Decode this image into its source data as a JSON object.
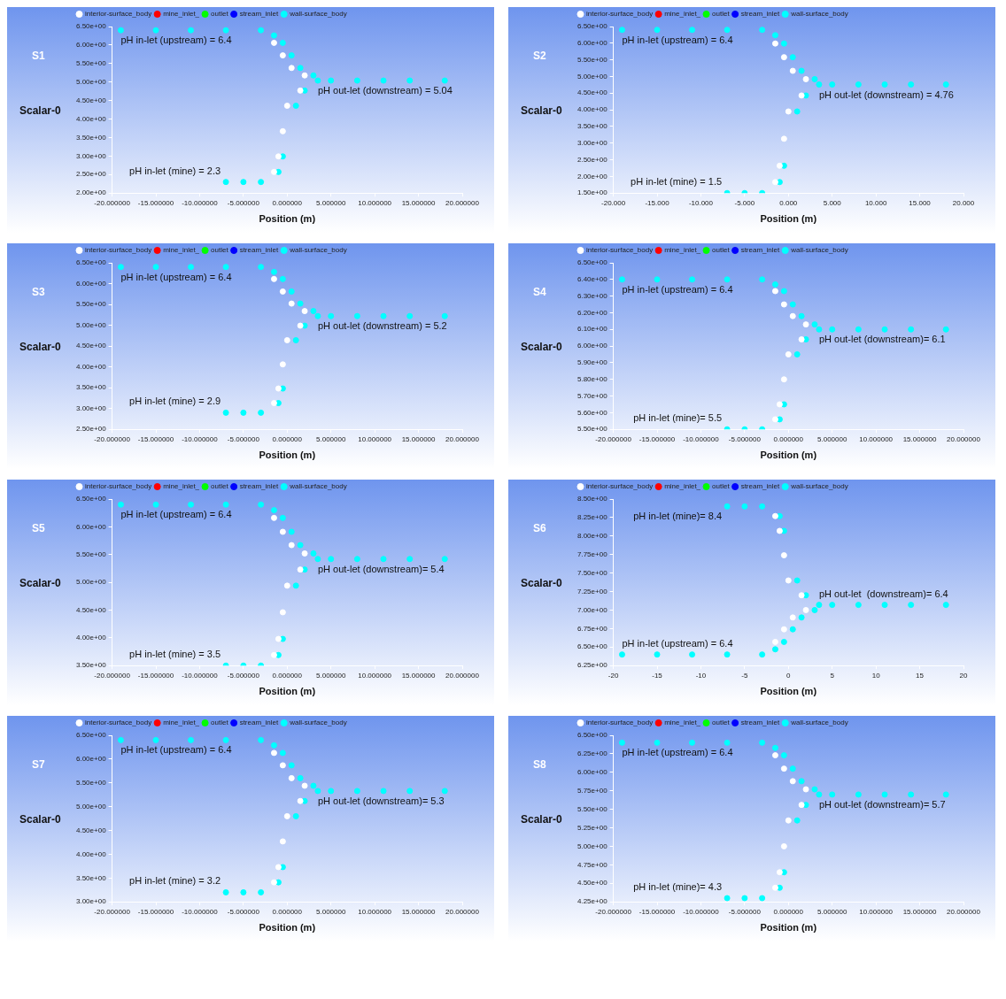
{
  "chart_data": [
    {
      "type": "scatter",
      "title": "S1",
      "xlabel": "Position (m)",
      "ylabel": "Scalar-0",
      "marker": "circle",
      "legend": "top left",
      "grid": false,
      "xlim": [
        -20,
        20
      ],
      "xticks": [
        {
          "value": -20,
          "label": "-20.000000"
        },
        {
          "value": -15,
          "label": "-15.000000"
        },
        {
          "value": -10,
          "label": "-10.000000"
        },
        {
          "value": -5,
          "label": "-5.000000"
        },
        {
          "value": 0,
          "label": "0.000000"
        },
        {
          "value": 5,
          "label": "5.000000"
        },
        {
          "value": 10,
          "label": "10.000000"
        },
        {
          "value": 15,
          "label": "15.000000"
        },
        {
          "value": 20,
          "label": "20.000000"
        }
      ],
      "ylim": [
        2,
        6.5
      ],
      "yticks": [
        {
          "value": 2,
          "label": "2.00e+00"
        },
        {
          "value": 2.5,
          "label": "2.50e+00"
        },
        {
          "value": 3,
          "label": "3.00e+00"
        },
        {
          "value": 3.5,
          "label": "3.50e+00"
        },
        {
          "value": 4,
          "label": "4.00e+00"
        },
        {
          "value": 4.5,
          "label": "4.50e+00"
        },
        {
          "value": 5,
          "label": "5.00e+00"
        },
        {
          "value": 5.5,
          "label": "5.50e+00"
        },
        {
          "value": 6,
          "label": "6.00e+00"
        },
        {
          "value": 6.5,
          "label": "6.50e+00"
        }
      ],
      "annotations": [
        {
          "text": "pH in-let (upstream) = 6.4",
          "x": -19,
          "y": 6.4
        },
        {
          "text": "pH out-let (downstream) = 5.04",
          "x": 3.5,
          "y": 5.04
        },
        {
          "text": "pH in-let (mine) = 2.3",
          "x": -7,
          "y": 2.3
        }
      ],
      "series": [
        {
          "name": "interior-surface_body",
          "color": "#ffffff",
          "x": [
            -1.5,
            -0.5,
            0.5,
            2,
            -1.5,
            -1,
            -0.5,
            0,
            1.5
          ],
          "values": [
            6.06,
            5.72,
            5.38,
            5.18,
            2.57,
            2.99,
            3.67,
            4.36,
            4.77
          ]
        },
        {
          "name": "mine_inlet_",
          "color": "#ff0000"
        },
        {
          "name": "outlet",
          "color": "#00ff00"
        },
        {
          "name": "stream_inlet",
          "color": "#0000ff"
        },
        {
          "name": "wall-surface_body",
          "color": "#00ffff",
          "x": [
            -19,
            -15,
            -11,
            -7,
            -3,
            -1.5,
            -0.5,
            0.5,
            1.5,
            3,
            5,
            8,
            11,
            14,
            18,
            -7,
            -5,
            -3,
            -1,
            -0.5,
            1,
            2,
            3.5
          ],
          "values": [
            6.4,
            6.4,
            6.4,
            6.4,
            6.4,
            6.26,
            6.06,
            5.72,
            5.38,
            5.18,
            5.04,
            5.04,
            5.04,
            5.04,
            5.04,
            2.3,
            2.3,
            2.3,
            2.57,
            2.99,
            4.36,
            4.77,
            5.04
          ]
        }
      ]
    },
    {
      "type": "scatter",
      "title": "S2",
      "xlabel": "Position (m)",
      "ylabel": "Scalar-0",
      "marker": "circle",
      "legend": "top left",
      "grid": false,
      "xlim": [
        -20,
        20
      ],
      "xticks": [
        {
          "value": -20,
          "label": "-20.000"
        },
        {
          "value": -15,
          "label": "-15.000"
        },
        {
          "value": -10,
          "label": "-10.000"
        },
        {
          "value": -5,
          "label": "-5.000"
        },
        {
          "value": 0,
          "label": "0.000"
        },
        {
          "value": 5,
          "label": "5.000"
        },
        {
          "value": 10,
          "label": "10.000"
        },
        {
          "value": 15,
          "label": "15.000"
        },
        {
          "value": 20,
          "label": "20.000"
        }
      ],
      "ylim": [
        1.5,
        6.5
      ],
      "yticks": [
        {
          "value": 1.5,
          "label": "1.50e+00"
        },
        {
          "value": 2,
          "label": "2.00e+00"
        },
        {
          "value": 2.5,
          "label": "2.50e+00"
        },
        {
          "value": 3,
          "label": "3.00e+00"
        },
        {
          "value": 3.5,
          "label": "3.50e+00"
        },
        {
          "value": 4,
          "label": "4.00e+00"
        },
        {
          "value": 4.5,
          "label": "4.50e+00"
        },
        {
          "value": 5,
          "label": "5.00e+00"
        },
        {
          "value": 5.5,
          "label": "5.50e+00"
        },
        {
          "value": 6,
          "label": "6.00e+00"
        },
        {
          "value": 6.5,
          "label": "6.50e+00"
        }
      ],
      "annotations": [
        {
          "text": "pH in-let (upstream) = 6.4",
          "x": -19,
          "y": 6.4
        },
        {
          "text": "pH out-let (downstream) = 4.76",
          "x": 3.5,
          "y": 4.76
        },
        {
          "text": "pH in-let (mine) = 1.5",
          "x": -7,
          "y": 1.5
        }
      ],
      "series": [
        {
          "name": "interior-surface_body",
          "color": "#ffffff",
          "x": [
            -1.5,
            -0.5,
            0.5,
            2,
            -1.5,
            -1,
            -0.5,
            0,
            1.5
          ],
          "values": [
            5.99,
            5.58,
            5.17,
            4.92,
            1.83,
            2.32,
            3.13,
            3.95,
            4.43
          ]
        },
        {
          "name": "mine_inlet_",
          "color": "#ff0000"
        },
        {
          "name": "outlet",
          "color": "#00ff00"
        },
        {
          "name": "stream_inlet",
          "color": "#0000ff"
        },
        {
          "name": "wall-surface_body",
          "color": "#00ffff",
          "x": [
            -19,
            -15,
            -11,
            -7,
            -3,
            -1.5,
            -0.5,
            0.5,
            1.5,
            3,
            5,
            8,
            11,
            14,
            18,
            -7,
            -5,
            -3,
            -1,
            -0.5,
            1,
            2,
            3.5
          ],
          "values": [
            6.4,
            6.4,
            6.4,
            6.4,
            6.4,
            6.24,
            5.99,
            5.58,
            5.17,
            4.92,
            4.76,
            4.76,
            4.76,
            4.76,
            4.76,
            1.5,
            1.5,
            1.5,
            1.83,
            2.32,
            3.95,
            4.43,
            4.76
          ]
        }
      ]
    },
    {
      "type": "scatter",
      "title": "S3",
      "xlabel": "Position (m)",
      "ylabel": "Scalar-0",
      "marker": "circle",
      "legend": "top left",
      "grid": false,
      "xlim": [
        -20,
        20
      ],
      "xticks": [
        {
          "value": -20,
          "label": "-20.000000"
        },
        {
          "value": -15,
          "label": "-15.000000"
        },
        {
          "value": -10,
          "label": "-10.000000"
        },
        {
          "value": -5,
          "label": "-5.000000"
        },
        {
          "value": 0,
          "label": "0.000000"
        },
        {
          "value": 5,
          "label": "5.000000"
        },
        {
          "value": 10,
          "label": "10.000000"
        },
        {
          "value": 15,
          "label": "15.000000"
        },
        {
          "value": 20,
          "label": "20.000000"
        }
      ],
      "ylim": [
        2.5,
        6.5
      ],
      "yticks": [
        {
          "value": 2.5,
          "label": "2.50e+00"
        },
        {
          "value": 3,
          "label": "3.00e+00"
        },
        {
          "value": 3.5,
          "label": "3.50e+00"
        },
        {
          "value": 4,
          "label": "4.00e+00"
        },
        {
          "value": 4.5,
          "label": "4.50e+00"
        },
        {
          "value": 5,
          "label": "5.00e+00"
        },
        {
          "value": 5.5,
          "label": "5.50e+00"
        },
        {
          "value": 6,
          "label": "6.00e+00"
        },
        {
          "value": 6.5,
          "label": "6.50e+00"
        }
      ],
      "annotations": [
        {
          "text": "pH in-let (upstream) = 6.4",
          "x": -19,
          "y": 6.4
        },
        {
          "text": "pH out-let (downstream) = 5.2",
          "x": 3.5,
          "y": 5.22
        },
        {
          "text": "pH in-let (mine) = 2.9",
          "x": -7,
          "y": 2.9
        }
      ],
      "series": [
        {
          "name": "interior-surface_body",
          "color": "#ffffff",
          "x": [
            -1.5,
            -0.5,
            0.5,
            2,
            -1.5,
            -1,
            -0.5,
            0,
            1.5
          ],
          "values": [
            6.11,
            5.81,
            5.52,
            5.34,
            3.13,
            3.48,
            4.06,
            4.64,
            4.99
          ]
        },
        {
          "name": "mine_inlet_",
          "color": "#ff0000"
        },
        {
          "name": "outlet",
          "color": "#00ff00"
        },
        {
          "name": "stream_inlet",
          "color": "#0000ff"
        },
        {
          "name": "wall-surface_body",
          "color": "#00ffff",
          "x": [
            -19,
            -15,
            -11,
            -7,
            -3,
            -1.5,
            -0.5,
            0.5,
            1.5,
            3,
            5,
            8,
            11,
            14,
            18,
            -7,
            -5,
            -3,
            -1,
            -0.5,
            1,
            2,
            3.5
          ],
          "values": [
            6.4,
            6.4,
            6.4,
            6.4,
            6.4,
            6.28,
            6.11,
            5.81,
            5.52,
            5.34,
            5.22,
            5.22,
            5.22,
            5.22,
            5.22,
            2.9,
            2.9,
            2.9,
            3.13,
            3.48,
            4.64,
            4.99,
            5.22
          ]
        }
      ]
    },
    {
      "type": "scatter",
      "title": "S4",
      "xlabel": "Position (m)",
      "ylabel": "Scalar-0",
      "marker": "circle",
      "legend": "top left",
      "grid": false,
      "xlim": [
        -20,
        20
      ],
      "xticks": [
        {
          "value": -20,
          "label": "-20.000000"
        },
        {
          "value": -15,
          "label": "-15.000000"
        },
        {
          "value": -10,
          "label": "-10.000000"
        },
        {
          "value": -5,
          "label": "-5.000000"
        },
        {
          "value": 0,
          "label": "0.000000"
        },
        {
          "value": 5,
          "label": "5.000000"
        },
        {
          "value": 10,
          "label": "10.000000"
        },
        {
          "value": 15,
          "label": "15.000000"
        },
        {
          "value": 20,
          "label": "20.000000"
        }
      ],
      "ylim": [
        5.5,
        6.5
      ],
      "yticks": [
        {
          "value": 5.5,
          "label": "5.50e+00"
        },
        {
          "value": 5.6,
          "label": "5.60e+00"
        },
        {
          "value": 5.7,
          "label": "5.70e+00"
        },
        {
          "value": 5.8,
          "label": "5.80e+00"
        },
        {
          "value": 5.9,
          "label": "5.90e+00"
        },
        {
          "value": 6,
          "label": "6.00e+00"
        },
        {
          "value": 6.1,
          "label": "6.10e+00"
        },
        {
          "value": 6.2,
          "label": "6.20e+00"
        },
        {
          "value": 6.3,
          "label": "6.30e+00"
        },
        {
          "value": 6.4,
          "label": "6.40e+00"
        },
        {
          "value": 6.5,
          "label": "6.50e+00"
        }
      ],
      "annotations": [
        {
          "text": "pH in-let (upstream) = 6.4",
          "x": -19,
          "y": 6.4
        },
        {
          "text": "pH out-let (downstream)= 6.1",
          "x": 3.5,
          "y": 6.1
        },
        {
          "text": "pH in-let (mine)= 5.5",
          "x": -7,
          "y": 5.5
        }
      ],
      "series": [
        {
          "name": "interior-surface_body",
          "color": "#ffffff",
          "x": [
            -1.5,
            -0.5,
            0.5,
            2,
            -1.5,
            -1,
            -0.5,
            0,
            1.5
          ],
          "values": [
            6.33,
            6.25,
            6.18,
            6.13,
            5.56,
            5.65,
            5.8,
            5.95,
            6.04
          ]
        },
        {
          "name": "mine_inlet_",
          "color": "#ff0000"
        },
        {
          "name": "outlet",
          "color": "#00ff00"
        },
        {
          "name": "stream_inlet",
          "color": "#0000ff"
        },
        {
          "name": "wall-surface_body",
          "color": "#00ffff",
          "x": [
            -19,
            -15,
            -11,
            -7,
            -3,
            -1.5,
            -0.5,
            0.5,
            1.5,
            3,
            5,
            8,
            11,
            14,
            18,
            -7,
            -5,
            -3,
            -1,
            -0.5,
            1,
            2,
            3.5
          ],
          "values": [
            6.4,
            6.4,
            6.4,
            6.4,
            6.4,
            6.37,
            6.33,
            6.25,
            6.18,
            6.13,
            6.1,
            6.1,
            6.1,
            6.1,
            6.1,
            5.5,
            5.5,
            5.5,
            5.56,
            5.65,
            5.95,
            6.04,
            6.1
          ]
        }
      ]
    },
    {
      "type": "scatter",
      "title": "S5",
      "xlabel": "Position (m)",
      "ylabel": "Scalar-0",
      "marker": "circle",
      "legend": "top left",
      "grid": false,
      "xlim": [
        -20,
        20
      ],
      "xticks": [
        {
          "value": -20,
          "label": "-20.000000"
        },
        {
          "value": -15,
          "label": "-15.000000"
        },
        {
          "value": -10,
          "label": "-10.000000"
        },
        {
          "value": -5,
          "label": "-5.000000"
        },
        {
          "value": 0,
          "label": "0.000000"
        },
        {
          "value": 5,
          "label": "5.000000"
        },
        {
          "value": 10,
          "label": "10.000000"
        },
        {
          "value": 15,
          "label": "15.000000"
        },
        {
          "value": 20,
          "label": "20.000000"
        }
      ],
      "ylim": [
        3.5,
        6.5
      ],
      "yticks": [
        {
          "value": 3.5,
          "label": "3.50e+00"
        },
        {
          "value": 4,
          "label": "4.00e+00"
        },
        {
          "value": 4.5,
          "label": "4.50e+00"
        },
        {
          "value": 5,
          "label": "5.00e+00"
        },
        {
          "value": 5.5,
          "label": "5.50e+00"
        },
        {
          "value": 6,
          "label": "6.00e+00"
        },
        {
          "value": 6.5,
          "label": "6.50e+00"
        }
      ],
      "annotations": [
        {
          "text": "pH in-let (upstream) = 6.4",
          "x": -19,
          "y": 6.4
        },
        {
          "text": "pH out-let (downstream)= 5.4",
          "x": 3.5,
          "y": 5.42
        },
        {
          "text": "pH in-let (mine) = 3.5",
          "x": -7,
          "y": 3.5
        }
      ],
      "series": [
        {
          "name": "interior-surface_body",
          "color": "#ffffff",
          "x": [
            -1.5,
            -0.5,
            0.5,
            2,
            -1.5,
            -1,
            -0.5,
            0,
            1.5
          ],
          "values": [
            6.16,
            5.91,
            5.67,
            5.52,
            3.69,
            3.98,
            4.46,
            4.94,
            5.23
          ]
        },
        {
          "name": "mine_inlet_",
          "color": "#ff0000"
        },
        {
          "name": "outlet",
          "color": "#00ff00"
        },
        {
          "name": "stream_inlet",
          "color": "#0000ff"
        },
        {
          "name": "wall-surface_body",
          "color": "#00ffff",
          "x": [
            -19,
            -15,
            -11,
            -7,
            -3,
            -1.5,
            -0.5,
            0.5,
            1.5,
            3,
            5,
            8,
            11,
            14,
            18,
            -7,
            -5,
            -3,
            -1,
            -0.5,
            1,
            2,
            3.5
          ],
          "values": [
            6.4,
            6.4,
            6.4,
            6.4,
            6.4,
            6.3,
            6.16,
            5.91,
            5.67,
            5.52,
            5.42,
            5.42,
            5.42,
            5.42,
            5.42,
            3.5,
            3.5,
            3.5,
            3.69,
            3.98,
            4.94,
            5.23,
            5.42
          ]
        }
      ]
    },
    {
      "type": "scatter",
      "title": "S6",
      "xlabel": "Position (m)",
      "ylabel": "Scalar-0",
      "marker": "circle",
      "legend": "top left",
      "grid": false,
      "xlim": [
        -20,
        20
      ],
      "xticks": [
        -20,
        -15,
        -10,
        -5,
        0,
        5,
        10,
        15,
        20
      ],
      "ylim": [
        6.25,
        8.5
      ],
      "yticks": [
        {
          "value": 6.25,
          "label": "6.25e+00"
        },
        {
          "value": 6.5,
          "label": "6.50e+00"
        },
        {
          "value": 6.75,
          "label": "6.75e+00"
        },
        {
          "value": 7,
          "label": "7.00e+00"
        },
        {
          "value": 7.25,
          "label": "7.25e+00"
        },
        {
          "value": 7.5,
          "label": "7.50e+00"
        },
        {
          "value": 7.75,
          "label": "7.75e+00"
        },
        {
          "value": 8,
          "label": "8.00e+00"
        },
        {
          "value": 8.25,
          "label": "8.25e+00"
        },
        {
          "value": 8.5,
          "label": "8.50e+00"
        }
      ],
      "annotations": [
        {
          "text": "pH in-let (mine)= 8.4",
          "x": -7,
          "y": 8.4
        },
        {
          "text": "pH out-let  (downstream)= 6.4",
          "x": 3.5,
          "y": 7.07
        },
        {
          "text": "pH in-let (upstream) = 6.4",
          "x": -19,
          "y": 6.4
        }
      ],
      "series": [
        {
          "name": "interior-surface_body",
          "color": "#ffffff",
          "x": [
            -1.5,
            -0.5,
            0.5,
            2,
            -1.5,
            -1,
            -0.5,
            0,
            1.5
          ],
          "values": [
            6.57,
            6.74,
            6.9,
            7,
            8.27,
            8.07,
            7.74,
            7.4,
            7.2
          ]
        },
        {
          "name": "mine_inlet_",
          "color": "#ff0000"
        },
        {
          "name": "outlet",
          "color": "#00ff00"
        },
        {
          "name": "stream_inlet",
          "color": "#0000ff"
        },
        {
          "name": "wall-surface_body",
          "color": "#00ffff",
          "x": [
            -19,
            -15,
            -11,
            -7,
            -3,
            -1.5,
            -0.5,
            0.5,
            1.5,
            3,
            5,
            8,
            11,
            14,
            18,
            -7,
            -5,
            -3,
            -1,
            -0.5,
            1,
            2,
            3.5
          ],
          "values": [
            6.4,
            6.4,
            6.4,
            6.4,
            6.4,
            6.47,
            6.57,
            6.74,
            6.9,
            7,
            7.07,
            7.07,
            7.07,
            7.07,
            7.07,
            8.4,
            8.4,
            8.4,
            8.27,
            8.07,
            7.4,
            7.2,
            7.07
          ]
        }
      ]
    },
    {
      "type": "scatter",
      "title": "S7",
      "xlabel": "Position (m)",
      "ylabel": "Scalar-0",
      "marker": "circle",
      "legend": "top left",
      "grid": false,
      "xlim": [
        -20,
        20
      ],
      "xticks": [
        {
          "value": -20,
          "label": "-20.000000"
        },
        {
          "value": -15,
          "label": "-15.000000"
        },
        {
          "value": -10,
          "label": "-10.000000"
        },
        {
          "value": -5,
          "label": "-5.000000"
        },
        {
          "value": 0,
          "label": "0.000000"
        },
        {
          "value": 5,
          "label": "5.000000"
        },
        {
          "value": 10,
          "label": "10.000000"
        },
        {
          "value": 15,
          "label": "15.000000"
        },
        {
          "value": 20,
          "label": "20.000000"
        }
      ],
      "ylim": [
        3,
        6.5
      ],
      "yticks": [
        {
          "value": 3,
          "label": "3.00e+00"
        },
        {
          "value": 3.5,
          "label": "3.50e+00"
        },
        {
          "value": 4,
          "label": "4.00e+00"
        },
        {
          "value": 4.5,
          "label": "4.50e+00"
        },
        {
          "value": 5,
          "label": "5.00e+00"
        },
        {
          "value": 5.5,
          "label": "5.50e+00"
        },
        {
          "value": 6,
          "label": "6.00e+00"
        },
        {
          "value": 6.5,
          "label": "6.50e+00"
        }
      ],
      "annotations": [
        {
          "text": "pH in-let (upstream) = 6.4",
          "x": -19,
          "y": 6.4
        },
        {
          "text": "pH out-let (downstream)= 5.3",
          "x": 3.5,
          "y": 5.33
        },
        {
          "text": "pH in-let (mine) = 3.2",
          "x": -7,
          "y": 3.2
        }
      ],
      "series": [
        {
          "name": "interior-surface_body",
          "color": "#ffffff",
          "x": [
            -1.5,
            -0.5,
            0.5,
            2,
            -1.5,
            -1,
            -0.5,
            0,
            1.5
          ],
          "values": [
            6.13,
            5.87,
            5.6,
            5.44,
            3.41,
            3.73,
            4.27,
            4.8,
            5.12
          ]
        },
        {
          "name": "mine_inlet_",
          "color": "#ff0000"
        },
        {
          "name": "outlet",
          "color": "#00ff00"
        },
        {
          "name": "stream_inlet",
          "color": "#0000ff"
        },
        {
          "name": "wall-surface_body",
          "color": "#00ffff",
          "x": [
            -19,
            -15,
            -11,
            -7,
            -3,
            -1.5,
            -0.5,
            0.5,
            1.5,
            3,
            5,
            8,
            11,
            14,
            18,
            -7,
            -5,
            -3,
            -1,
            -0.5,
            1,
            2,
            3.5
          ],
          "values": [
            6.4,
            6.4,
            6.4,
            6.4,
            6.4,
            6.29,
            6.13,
            5.87,
            5.6,
            5.44,
            5.33,
            5.33,
            5.33,
            5.33,
            5.33,
            3.2,
            3.2,
            3.2,
            3.41,
            3.73,
            4.8,
            5.12,
            5.33
          ]
        }
      ]
    },
    {
      "type": "scatter",
      "title": "S8",
      "xlabel": "Position (m)",
      "ylabel": "Scalar-0",
      "marker": "circle",
      "legend": "top left",
      "grid": false,
      "xlim": [
        -20,
        20
      ],
      "xticks": [
        {
          "value": -20,
          "label": "-20.000000"
        },
        {
          "value": -15,
          "label": "-15.000000"
        },
        {
          "value": -10,
          "label": "-10.000000"
        },
        {
          "value": -5,
          "label": "-5.000000"
        },
        {
          "value": 0,
          "label": "0.000000"
        },
        {
          "value": 5,
          "label": "5.000000"
        },
        {
          "value": 10,
          "label": "10.000000"
        },
        {
          "value": 15,
          "label": "15.000000"
        },
        {
          "value": 20,
          "label": "20.000000"
        }
      ],
      "ylim": [
        4.25,
        6.5
      ],
      "yticks": [
        {
          "value": 4.25,
          "label": "4.25e+00"
        },
        {
          "value": 4.5,
          "label": "4.50e+00"
        },
        {
          "value": 4.75,
          "label": "4.75e+00"
        },
        {
          "value": 5,
          "label": "5.00e+00"
        },
        {
          "value": 5.25,
          "label": "5.25e+00"
        },
        {
          "value": 5.5,
          "label": "5.50e+00"
        },
        {
          "value": 5.75,
          "label": "5.75e+00"
        },
        {
          "value": 6,
          "label": "6.00e+00"
        },
        {
          "value": 6.25,
          "label": "6.25e+00"
        },
        {
          "value": 6.5,
          "label": "6.50e+00"
        }
      ],
      "annotations": [
        {
          "text": "pH in-let (upstream) = 6.4",
          "x": -19,
          "y": 6.4
        },
        {
          "text": "pH out-let (downstream)= 5.7",
          "x": 3.5,
          "y": 5.7
        },
        {
          "text": "pH in-let (mine)= 4.3",
          "x": -7,
          "y": 4.3
        }
      ],
      "series": [
        {
          "name": "interior-surface_body",
          "color": "#ffffff",
          "x": [
            -1.5,
            -0.5,
            0.5,
            2,
            -1.5,
            -1,
            -0.5,
            0,
            1.5
          ],
          "values": [
            6.23,
            6.05,
            5.88,
            5.77,
            4.44,
            4.65,
            5,
            5.35,
            5.56
          ]
        },
        {
          "name": "mine_inlet_",
          "color": "#ff0000"
        },
        {
          "name": "outlet",
          "color": "#00ff00"
        },
        {
          "name": "stream_inlet",
          "color": "#0000ff"
        },
        {
          "name": "wall-surface_body",
          "color": "#00ffff",
          "x": [
            -19,
            -15,
            -11,
            -7,
            -3,
            -1.5,
            -0.5,
            0.5,
            1.5,
            3,
            5,
            8,
            11,
            14,
            18,
            -7,
            -5,
            -3,
            -1,
            -0.5,
            1,
            2,
            3.5
          ],
          "values": [
            6.4,
            6.4,
            6.4,
            6.4,
            6.4,
            6.33,
            6.23,
            6.05,
            5.88,
            5.77,
            5.7,
            5.7,
            5.7,
            5.7,
            5.7,
            4.3,
            4.3,
            4.3,
            4.44,
            4.65,
            5.35,
            5.56,
            5.7
          ]
        }
      ]
    }
  ]
}
